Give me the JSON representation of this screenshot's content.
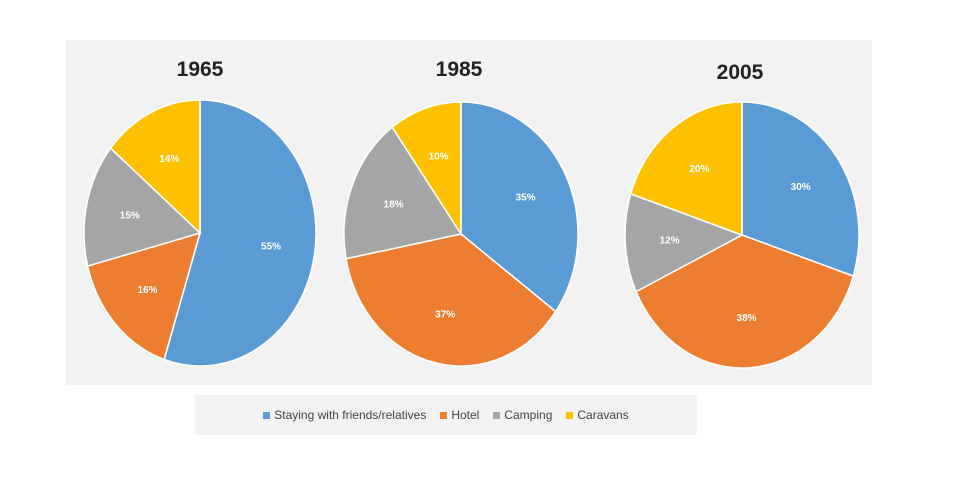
{
  "chart_data": {
    "type": "pie",
    "series_names": [
      "Staying with friends/relatives",
      "Hotel",
      "Camping",
      "Caravans"
    ],
    "colors": [
      "#5b9bd5",
      "#ed7d31",
      "#a5a5a5",
      "#ffc000"
    ],
    "legend_position": "bottom",
    "pies": [
      {
        "title": "1965",
        "values": [
          55,
          16,
          15,
          14
        ],
        "labels": [
          "55%",
          "16%",
          "15%",
          "14%"
        ]
      },
      {
        "title": "1985",
        "values": [
          35,
          37,
          18,
          10
        ],
        "labels": [
          "35%",
          "37%",
          "18%",
          "10%"
        ]
      },
      {
        "title": "2005",
        "values": [
          30,
          38,
          12,
          20
        ],
        "labels": [
          "30%",
          "38%",
          "12%",
          "20%"
        ]
      }
    ]
  }
}
